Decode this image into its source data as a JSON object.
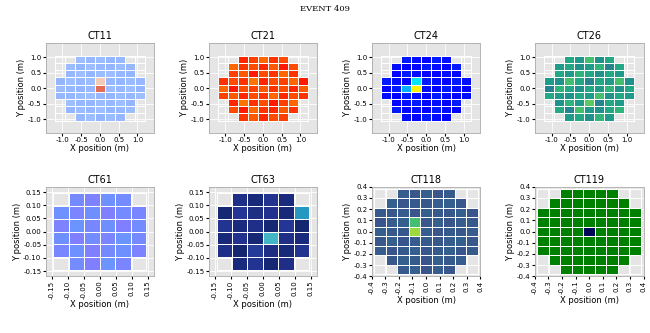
{
  "figure_title": "EVENT 409",
  "chart_data": [
    {
      "type": "heatmap",
      "title": "CT11",
      "x_label": "X position (m)",
      "y_label": "Y position (m)",
      "xlim": [
        -1.45,
        1.45
      ],
      "ylim": [
        -1.45,
        1.45
      ],
      "xticks": [
        -1.0,
        -0.5,
        0.0,
        0.5,
        1.0
      ],
      "yticks": [
        -1.0,
        -0.5,
        0.0,
        0.5,
        1.0
      ],
      "grid": true,
      "color": "coolwarm",
      "color_range": [
        0,
        1
      ],
      "extent": [
        -1.2,
        1.2,
        -1.05,
        1.05
      ],
      "cells": [
        [
          null,
          null,
          0.28,
          0.3,
          0.27,
          0.29,
          0.28,
          null,
          null
        ],
        [
          null,
          0.27,
          0.29,
          0.28,
          0.3,
          0.27,
          0.28,
          0.29,
          null
        ],
        [
          null,
          0.3,
          0.28,
          0.27,
          0.29,
          0.28,
          0.3,
          0.27,
          null
        ],
        [
          0.28,
          0.27,
          0.29,
          0.3,
          0.28,
          0.27,
          0.29,
          0.28,
          0.3
        ],
        [
          0.29,
          0.28,
          0.27,
          0.28,
          0.85,
          0.29,
          0.28,
          0.3,
          0.27
        ],
        [
          0.27,
          0.3,
          0.28,
          0.29,
          0.6,
          0.28,
          0.27,
          0.29,
          0.28
        ],
        [
          null,
          0.28,
          0.3,
          0.27,
          0.29,
          0.3,
          0.28,
          0.27,
          null
        ],
        [
          null,
          0.29,
          0.27,
          0.3,
          0.28,
          0.27,
          0.29,
          0.28,
          null
        ],
        [
          null,
          null,
          0.3,
          0.28,
          0.29,
          0.27,
          0.28,
          null,
          null
        ]
      ]
    },
    {
      "type": "heatmap",
      "title": "CT21",
      "x_label": "X position (m)",
      "y_label": "Y position (m)",
      "xlim": [
        -1.45,
        1.45
      ],
      "ylim": [
        -1.45,
        1.45
      ],
      "xticks": [
        -1.0,
        -0.5,
        0.0,
        0.5,
        1.0
      ],
      "yticks": [
        -1.0,
        -0.5,
        0.0,
        0.5,
        1.0
      ],
      "grid": true,
      "color": "autumn",
      "color_range": [
        0,
        1
      ],
      "extent": [
        -1.2,
        1.2,
        -1.05,
        1.05
      ],
      "cells": [
        [
          null,
          null,
          0.2,
          0.35,
          0.15,
          0.3,
          0.25,
          null,
          null
        ],
        [
          null,
          0.3,
          0.1,
          0.4,
          0.2,
          0.15,
          0.35,
          0.2,
          null
        ],
        [
          null,
          0.15,
          0.45,
          0.2,
          0.3,
          0.1,
          0.25,
          0.4,
          null
        ],
        [
          0.25,
          0.35,
          0.15,
          0.3,
          0.2,
          0.4,
          0.15,
          0.3,
          0.2
        ],
        [
          0.4,
          0.1,
          0.3,
          0.25,
          0.35,
          0.2,
          0.3,
          0.15,
          0.35
        ],
        [
          0.2,
          0.3,
          0.2,
          0.45,
          0.15,
          0.3,
          0.25,
          0.4,
          0.1
        ],
        [
          null,
          0.25,
          0.35,
          0.1,
          0.3,
          0.2,
          0.4,
          0.2,
          null
        ],
        [
          null,
          0.4,
          0.2,
          0.3,
          0.15,
          0.35,
          0.1,
          0.3,
          null
        ],
        [
          null,
          null,
          0.15,
          0.25,
          0.4,
          0.2,
          0.3,
          null,
          null
        ]
      ]
    },
    {
      "type": "heatmap",
      "title": "CT24",
      "x_label": "X position (m)",
      "y_label": "Y position (m)",
      "xlim": [
        -1.45,
        1.45
      ],
      "ylim": [
        -1.45,
        1.45
      ],
      "xticks": [
        -1.0,
        -0.5,
        0.0,
        0.5,
        1.0
      ],
      "yticks": [
        -1.0,
        -0.5,
        0.0,
        0.5,
        1.0
      ],
      "grid": true,
      "color": "jet",
      "color_range": [
        0,
        1
      ],
      "extent": [
        -1.2,
        1.2,
        -1.05,
        1.05
      ],
      "cells": [
        [
          null,
          null,
          0.14,
          0.13,
          0.15,
          0.14,
          0.13,
          null,
          null
        ],
        [
          null,
          0.15,
          0.13,
          0.14,
          0.12,
          0.15,
          0.14,
          0.13,
          null
        ],
        [
          null,
          0.13,
          0.14,
          0.15,
          0.13,
          0.14,
          0.12,
          0.15,
          null
        ],
        [
          0.14,
          0.12,
          0.15,
          0.14,
          0.13,
          0.15,
          0.14,
          0.13,
          0.14
        ],
        [
          0.13,
          0.15,
          0.3,
          0.65,
          0.14,
          0.13,
          0.15,
          0.14,
          0.12
        ],
        [
          0.15,
          0.14,
          0.13,
          0.35,
          0.15,
          0.14,
          0.13,
          0.15,
          0.14
        ],
        [
          null,
          0.13,
          0.15,
          0.14,
          0.13,
          0.12,
          0.14,
          0.13,
          null
        ],
        [
          null,
          0.14,
          0.12,
          0.13,
          0.15,
          0.14,
          0.13,
          0.15,
          null
        ],
        [
          null,
          null,
          0.15,
          0.14,
          0.13,
          0.15,
          0.14,
          null,
          null
        ]
      ]
    },
    {
      "type": "heatmap",
      "title": "CT26",
      "x_label": "X position (m)",
      "y_label": "Y position (m)",
      "xlim": [
        -1.45,
        1.45
      ],
      "ylim": [
        -1.45,
        1.45
      ],
      "xticks": [
        -1.0,
        -0.5,
        0.0,
        0.5,
        1.0
      ],
      "yticks": [
        -1.0,
        -0.5,
        0.0,
        0.5,
        1.0
      ],
      "grid": true,
      "color": "viridis",
      "color_range": [
        0,
        1
      ],
      "extent": [
        -1.2,
        1.2,
        -1.05,
        1.05
      ],
      "cells": [
        [
          null,
          null,
          0.55,
          0.6,
          0.5,
          0.65,
          0.55,
          null,
          null
        ],
        [
          null,
          0.6,
          0.45,
          0.7,
          0.55,
          0.5,
          0.6,
          0.65,
          null
        ],
        [
          null,
          0.5,
          0.65,
          0.55,
          0.75,
          0.45,
          0.6,
          0.55,
          null
        ],
        [
          0.6,
          0.55,
          0.5,
          0.6,
          0.55,
          0.7,
          0.5,
          0.6,
          0.55
        ],
        [
          0.45,
          0.65,
          0.6,
          0.5,
          0.6,
          0.55,
          0.65,
          0.5,
          0.6
        ],
        [
          0.55,
          0.5,
          0.7,
          0.6,
          0.45,
          0.6,
          0.55,
          0.7,
          0.5
        ],
        [
          null,
          0.6,
          0.55,
          0.65,
          0.6,
          0.5,
          0.6,
          0.55,
          null
        ],
        [
          null,
          0.55,
          0.6,
          0.5,
          0.55,
          0.65,
          0.45,
          0.6,
          null
        ],
        [
          null,
          null,
          0.6,
          0.55,
          0.7,
          0.5,
          0.6,
          null,
          null
        ]
      ]
    },
    {
      "type": "heatmap",
      "title": "CT61",
      "x_label": "X position (m)",
      "y_label": "Y position (m)",
      "xlim": [
        -0.17,
        0.17
      ],
      "ylim": [
        -0.17,
        0.17
      ],
      "xticks": [
        -0.15,
        {
          "value": -0.1,
          "label": "-0.10"
        },
        -0.05,
        {
          "value": 0.0,
          "label": "0.00"
        },
        0.05,
        {
          "value": 0.1,
          "label": "0.10"
        },
        0.15
      ],
      "yticks": [
        -0.15,
        {
          "value": -0.1,
          "label": "-0.10"
        },
        -0.05,
        {
          "value": 0.0,
          "label": "0.00"
        },
        0.05,
        {
          "value": 0.1,
          "label": "0.10"
        },
        0.15
      ],
      "grid": true,
      "color": "cool",
      "color_range": [
        0,
        1
      ],
      "extent": [
        -0.145,
        0.145,
        -0.145,
        0.145
      ],
      "cells": [
        [
          null,
          0.45,
          0.5,
          0.42,
          0.48,
          null
        ],
        [
          0.47,
          0.43,
          0.5,
          0.46,
          0.44,
          0.49
        ],
        [
          0.44,
          0.5,
          0.45,
          0.48,
          0.42,
          0.46
        ],
        [
          0.49,
          0.42,
          0.47,
          0.44,
          0.5,
          0.45
        ],
        [
          0.43,
          0.48,
          0.44,
          0.5,
          0.46,
          0.47
        ],
        [
          null,
          0.46,
          0.49,
          0.43,
          0.45,
          null
        ]
      ]
    },
    {
      "type": "heatmap",
      "title": "CT63",
      "x_label": "X position (m)",
      "y_label": "Y position (m)",
      "xlim": [
        -0.17,
        0.17
      ],
      "ylim": [
        -0.17,
        0.17
      ],
      "xticks": [
        -0.15,
        {
          "value": -0.1,
          "label": "-0.10"
        },
        -0.05,
        {
          "value": 0.0,
          "label": "0.00"
        },
        0.05,
        {
          "value": 0.1,
          "label": "0.10"
        },
        0.15
      ],
      "yticks": [
        -0.15,
        {
          "value": -0.1,
          "label": "-0.10"
        },
        -0.05,
        {
          "value": 0.0,
          "label": "0.00"
        },
        0.05,
        {
          "value": 0.1,
          "label": "0.10"
        },
        0.15
      ],
      "grid": true,
      "color": "YlGnBu_r",
      "color_range": [
        0,
        1
      ],
      "extent": [
        -0.145,
        0.145,
        -0.145,
        0.145
      ],
      "cells": [
        [
          null,
          0.08,
          0.12,
          0.06,
          0.1,
          null
        ],
        [
          0.1,
          0.05,
          0.15,
          0.09,
          0.07,
          0.12
        ],
        [
          0.07,
          0.11,
          0.06,
          0.5,
          0.1,
          0.08
        ],
        [
          0.12,
          0.08,
          0.1,
          0.06,
          0.13,
          0.05
        ],
        [
          0.06,
          0.13,
          0.09,
          0.11,
          0.07,
          0.4
        ],
        [
          null,
          0.1,
          0.07,
          0.12,
          0.08,
          null
        ]
      ]
    },
    {
      "type": "heatmap",
      "title": "CT118",
      "x_label": "X position (m)",
      "y_label": "Y position (m)",
      "xlim": [
        -0.4,
        0.4
      ],
      "ylim": [
        -0.4,
        0.4
      ],
      "xticks": [
        -0.4,
        -0.3,
        -0.2,
        -0.1,
        0.0,
        0.1,
        0.2,
        0.3,
        0.4
      ],
      "yticks": [
        -0.4,
        -0.3,
        -0.2,
        -0.1,
        0.0,
        0.1,
        0.2,
        0.3,
        0.4
      ],
      "grid": true,
      "color": "viridis",
      "color_range": [
        0,
        1
      ],
      "extent": [
        -0.38,
        0.38,
        -0.38,
        0.38
      ],
      "cells": [
        [
          null,
          null,
          0.28,
          0.3,
          0.26,
          0.29,
          0.27,
          null,
          null
        ],
        [
          null,
          0.27,
          0.3,
          0.28,
          0.26,
          0.3,
          0.28,
          0.29,
          null
        ],
        [
          0.29,
          0.26,
          0.28,
          0.3,
          0.27,
          0.28,
          0.3,
          0.26,
          0.28
        ],
        [
          0.27,
          0.3,
          0.26,
          0.29,
          0.28,
          0.27,
          0.29,
          0.3,
          0.27
        ],
        [
          0.3,
          0.28,
          0.27,
          0.85,
          0.29,
          0.26,
          0.28,
          0.27,
          0.29
        ],
        [
          0.26,
          0.29,
          0.3,
          0.7,
          0.27,
          0.3,
          0.26,
          0.29,
          0.28
        ],
        [
          0.28,
          0.27,
          0.29,
          0.26,
          0.3,
          0.28,
          0.27,
          0.3,
          0.26
        ],
        [
          null,
          0.3,
          0.26,
          0.28,
          0.27,
          0.29,
          0.3,
          0.27,
          null
        ],
        [
          null,
          null,
          0.29,
          0.27,
          0.3,
          0.26,
          0.28,
          null,
          null
        ]
      ]
    },
    {
      "type": "heatmap",
      "title": "CT119",
      "x_label": "X position (m)",
      "y_label": "Y position (m)",
      "xlim": [
        -0.4,
        0.4
      ],
      "ylim": [
        -0.4,
        0.4
      ],
      "xticks": [
        -0.4,
        -0.3,
        -0.2,
        -0.1,
        0.0,
        0.1,
        0.2,
        0.3,
        0.4
      ],
      "yticks": [
        -0.4,
        -0.3,
        -0.2,
        -0.1,
        0.0,
        0.1,
        0.2,
        0.3,
        0.4
      ],
      "grid": true,
      "color": "ocean",
      "color_range": [
        0,
        1
      ],
      "extent": [
        -0.38,
        0.38,
        -0.38,
        0.38
      ],
      "cells": [
        [
          null,
          null,
          0,
          0,
          0,
          0,
          0,
          null,
          null
        ],
        [
          null,
          0,
          0,
          0,
          0,
          0,
          0,
          0,
          null
        ],
        [
          0,
          0,
          0,
          0,
          0,
          0,
          0,
          0,
          0
        ],
        [
          0,
          0,
          0,
          0,
          0,
          0,
          0,
          0,
          0
        ],
        [
          0,
          0,
          0,
          0,
          0.35,
          0,
          0,
          0,
          0
        ],
        [
          0,
          0,
          0,
          0,
          0,
          0,
          0,
          0,
          0
        ],
        [
          0,
          0,
          0,
          0,
          0,
          0,
          0,
          0,
          0
        ],
        [
          null,
          0,
          0,
          0,
          0,
          0,
          0,
          0,
          null
        ],
        [
          null,
          null,
          0,
          0,
          0,
          0,
          0,
          null,
          null
        ]
      ]
    }
  ]
}
